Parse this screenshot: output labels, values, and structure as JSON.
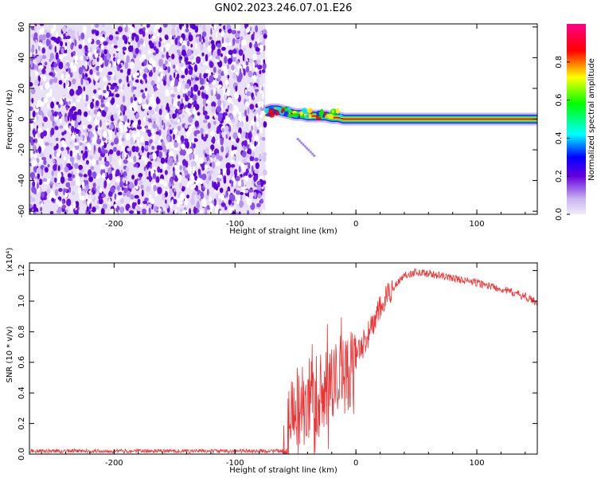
{
  "title": "GN02.2023.246.07.01.E26",
  "chart_data": [
    {
      "type": "heatmap",
      "xlabel": "Height of straight line (km)",
      "ylabel": "Frequency (Hz)",
      "xlim": [
        -270,
        150
      ],
      "ylim": [
        -62,
        62
      ],
      "x_ticks": [
        -200,
        -100,
        0,
        100
      ],
      "y_ticks": [
        -60,
        -40,
        -20,
        0,
        20,
        40,
        60
      ],
      "noise_region": {
        "x": [
          -270,
          -75
        ],
        "y": [
          -62,
          62
        ]
      },
      "signal_track": [
        {
          "x": -74,
          "y": 5
        },
        {
          "x": -70,
          "y": 6
        },
        {
          "x": -65,
          "y": 6
        },
        {
          "x": -60,
          "y": 5
        },
        {
          "x": -55,
          "y": 4
        },
        {
          "x": -50,
          "y": 3
        },
        {
          "x": -45,
          "y": 3
        },
        {
          "x": -40,
          "y": 2
        },
        {
          "x": -35,
          "y": 2
        },
        {
          "x": -30,
          "y": 2
        },
        {
          "x": -25,
          "y": 2
        },
        {
          "x": -20,
          "y": 1
        },
        {
          "x": -15,
          "y": 1
        },
        {
          "x": -10,
          "y": 0
        },
        {
          "x": 0,
          "y": 0
        },
        {
          "x": 150,
          "y": 0
        }
      ],
      "colorbar": {
        "label": "Normalized spectral amplitude",
        "ticks": [
          0.0,
          0.2,
          0.4,
          0.6,
          0.8
        ],
        "colors": [
          "#f0ecfa",
          "#6600dd",
          "#0000ff",
          "#00ffff",
          "#00ff00",
          "#ffff00",
          "#ff0000",
          "#ff0088"
        ]
      }
    },
    {
      "type": "line",
      "xlabel": "Height of straight line (km)",
      "ylabel": "SNR (10 * v/v)",
      "multiplier": "(x10⁴)",
      "xlim": [
        -270,
        150
      ],
      "ylim": [
        0,
        1.25
      ],
      "x_ticks": [
        -200,
        -100,
        0,
        100
      ],
      "y_ticks": [
        0.0,
        0.2,
        0.4,
        0.6,
        0.8,
        1.0,
        1.2
      ],
      "y_tick_labels": [
        "0.0",
        "0.2",
        "0.4",
        "0.6",
        "0.8",
        "1.0",
        "1.2"
      ],
      "series": [
        {
          "color": "#ee3333",
          "x": [
            -270,
            -200,
            -100,
            -60,
            -55,
            -50,
            -45,
            -40,
            -35,
            -30,
            -25,
            -20,
            -15,
            -10,
            -5,
            0,
            10,
            20,
            30,
            40,
            50,
            60,
            80,
            100,
            120,
            140,
            150
          ],
          "y": [
            0.02,
            0.02,
            0.02,
            0.02,
            0.18,
            0.28,
            0.32,
            0.35,
            0.38,
            0.4,
            0.42,
            0.45,
            0.48,
            0.52,
            0.56,
            0.62,
            0.78,
            0.95,
            1.08,
            1.17,
            1.19,
            1.18,
            1.15,
            1.12,
            1.08,
            1.03,
            0.99
          ]
        }
      ]
    }
  ]
}
